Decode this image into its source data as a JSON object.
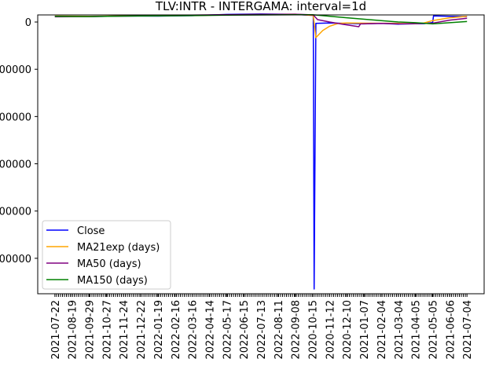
{
  "chart_data": {
    "type": "line",
    "title": "TLV:INTR - INTERGAMA: interval=1d",
    "xlabel": "",
    "ylabel": "",
    "ylim": [
      -575000,
      15000
    ],
    "y_ticks": [
      0,
      -100000,
      -200000,
      -300000,
      -400000,
      -500000
    ],
    "y_tick_labels": [
      "0",
      "00000",
      "00000",
      "00000",
      "00000",
      "00000"
    ],
    "x_tick_labels": [
      "2021-07-22",
      "2021-08-19",
      "2021-09-29",
      "2021-10-27",
      "2021-11-24",
      "2021-12-22",
      "2022-01-19",
      "2022-02-16",
      "2022-03-16",
      "2022-04-14",
      "2022-05-17",
      "2022-06-15",
      "2022-07-13",
      "2022-08-11",
      "2022-09-08",
      "2020-10-15",
      "2020-11-12",
      "2020-12-10",
      "2021-01-07",
      "2021-02-04",
      "2021-03-04",
      "2021-04-05",
      "2021-05-05",
      "2021-06-06",
      "2021-07-04"
    ],
    "x_range": [
      -1,
      25
    ],
    "legend_position": "lower left",
    "grid": false,
    "series": [
      {
        "name": "Close",
        "color": "#0000ff",
        "points": [
          [
            0,
            12000
          ],
          [
            2,
            11500
          ],
          [
            4,
            13000
          ],
          [
            6,
            12500
          ],
          [
            8,
            13500
          ],
          [
            10,
            16000
          ],
          [
            12,
            17000
          ],
          [
            14,
            16000
          ],
          [
            15.05,
            14000
          ],
          [
            15.1,
            -565000
          ],
          [
            15.2,
            -3000
          ],
          [
            16,
            -2000
          ],
          [
            18,
            -4000
          ],
          [
            19,
            -3000
          ],
          [
            20,
            -4500
          ],
          [
            21,
            -3800
          ],
          [
            21.5,
            -3500
          ],
          [
            22,
            -1000
          ],
          [
            22.05,
            13000
          ],
          [
            23,
            12000
          ],
          [
            24,
            11500
          ]
        ]
      },
      {
        "name": "MA21exp (days)",
        "color": "#ffa500",
        "points": [
          [
            0,
            12500
          ],
          [
            2,
            12000
          ],
          [
            4,
            13000
          ],
          [
            6,
            13500
          ],
          [
            8,
            14000
          ],
          [
            10,
            15000
          ],
          [
            12,
            16000
          ],
          [
            14,
            16500
          ],
          [
            15.05,
            14000
          ],
          [
            15.2,
            -33000
          ],
          [
            15.6,
            -18000
          ],
          [
            16,
            -9000
          ],
          [
            16.5,
            -3000
          ],
          [
            17,
            -2000
          ],
          [
            18,
            -2500
          ],
          [
            20,
            -3000
          ],
          [
            21,
            -3500
          ],
          [
            21.5,
            -2000
          ],
          [
            22,
            3000
          ],
          [
            23,
            9000
          ],
          [
            24,
            12000
          ]
        ]
      },
      {
        "name": "MA50 (days)",
        "color": "#800080",
        "points": [
          [
            0,
            11000
          ],
          [
            2,
            11500
          ],
          [
            4,
            12500
          ],
          [
            6,
            13500
          ],
          [
            8,
            14500
          ],
          [
            10,
            15500
          ],
          [
            12,
            16000
          ],
          [
            14,
            16500
          ],
          [
            15.05,
            15000
          ],
          [
            15.3,
            5000
          ],
          [
            16,
            0
          ],
          [
            16.8,
            -5000
          ],
          [
            17.7,
            -10000
          ],
          [
            17.8,
            -4000
          ],
          [
            19,
            -3000
          ],
          [
            20,
            -4000
          ],
          [
            21,
            -3500
          ],
          [
            22,
            -2500
          ],
          [
            23,
            4000
          ],
          [
            24,
            8000
          ]
        ]
      },
      {
        "name": "MA150 (days)",
        "color": "#008000",
        "points": [
          [
            0,
            12000
          ],
          [
            2,
            11500
          ],
          [
            4,
            12500
          ],
          [
            6,
            13000
          ],
          [
            8,
            13500
          ],
          [
            10,
            14500
          ],
          [
            12,
            15000
          ],
          [
            14,
            15500
          ],
          [
            15,
            15500
          ],
          [
            17,
            9000
          ],
          [
            19,
            3000
          ],
          [
            20,
            0
          ],
          [
            21,
            -1500
          ],
          [
            22,
            -4000
          ],
          [
            23,
            -1500
          ],
          [
            24,
            1000
          ]
        ]
      }
    ]
  }
}
